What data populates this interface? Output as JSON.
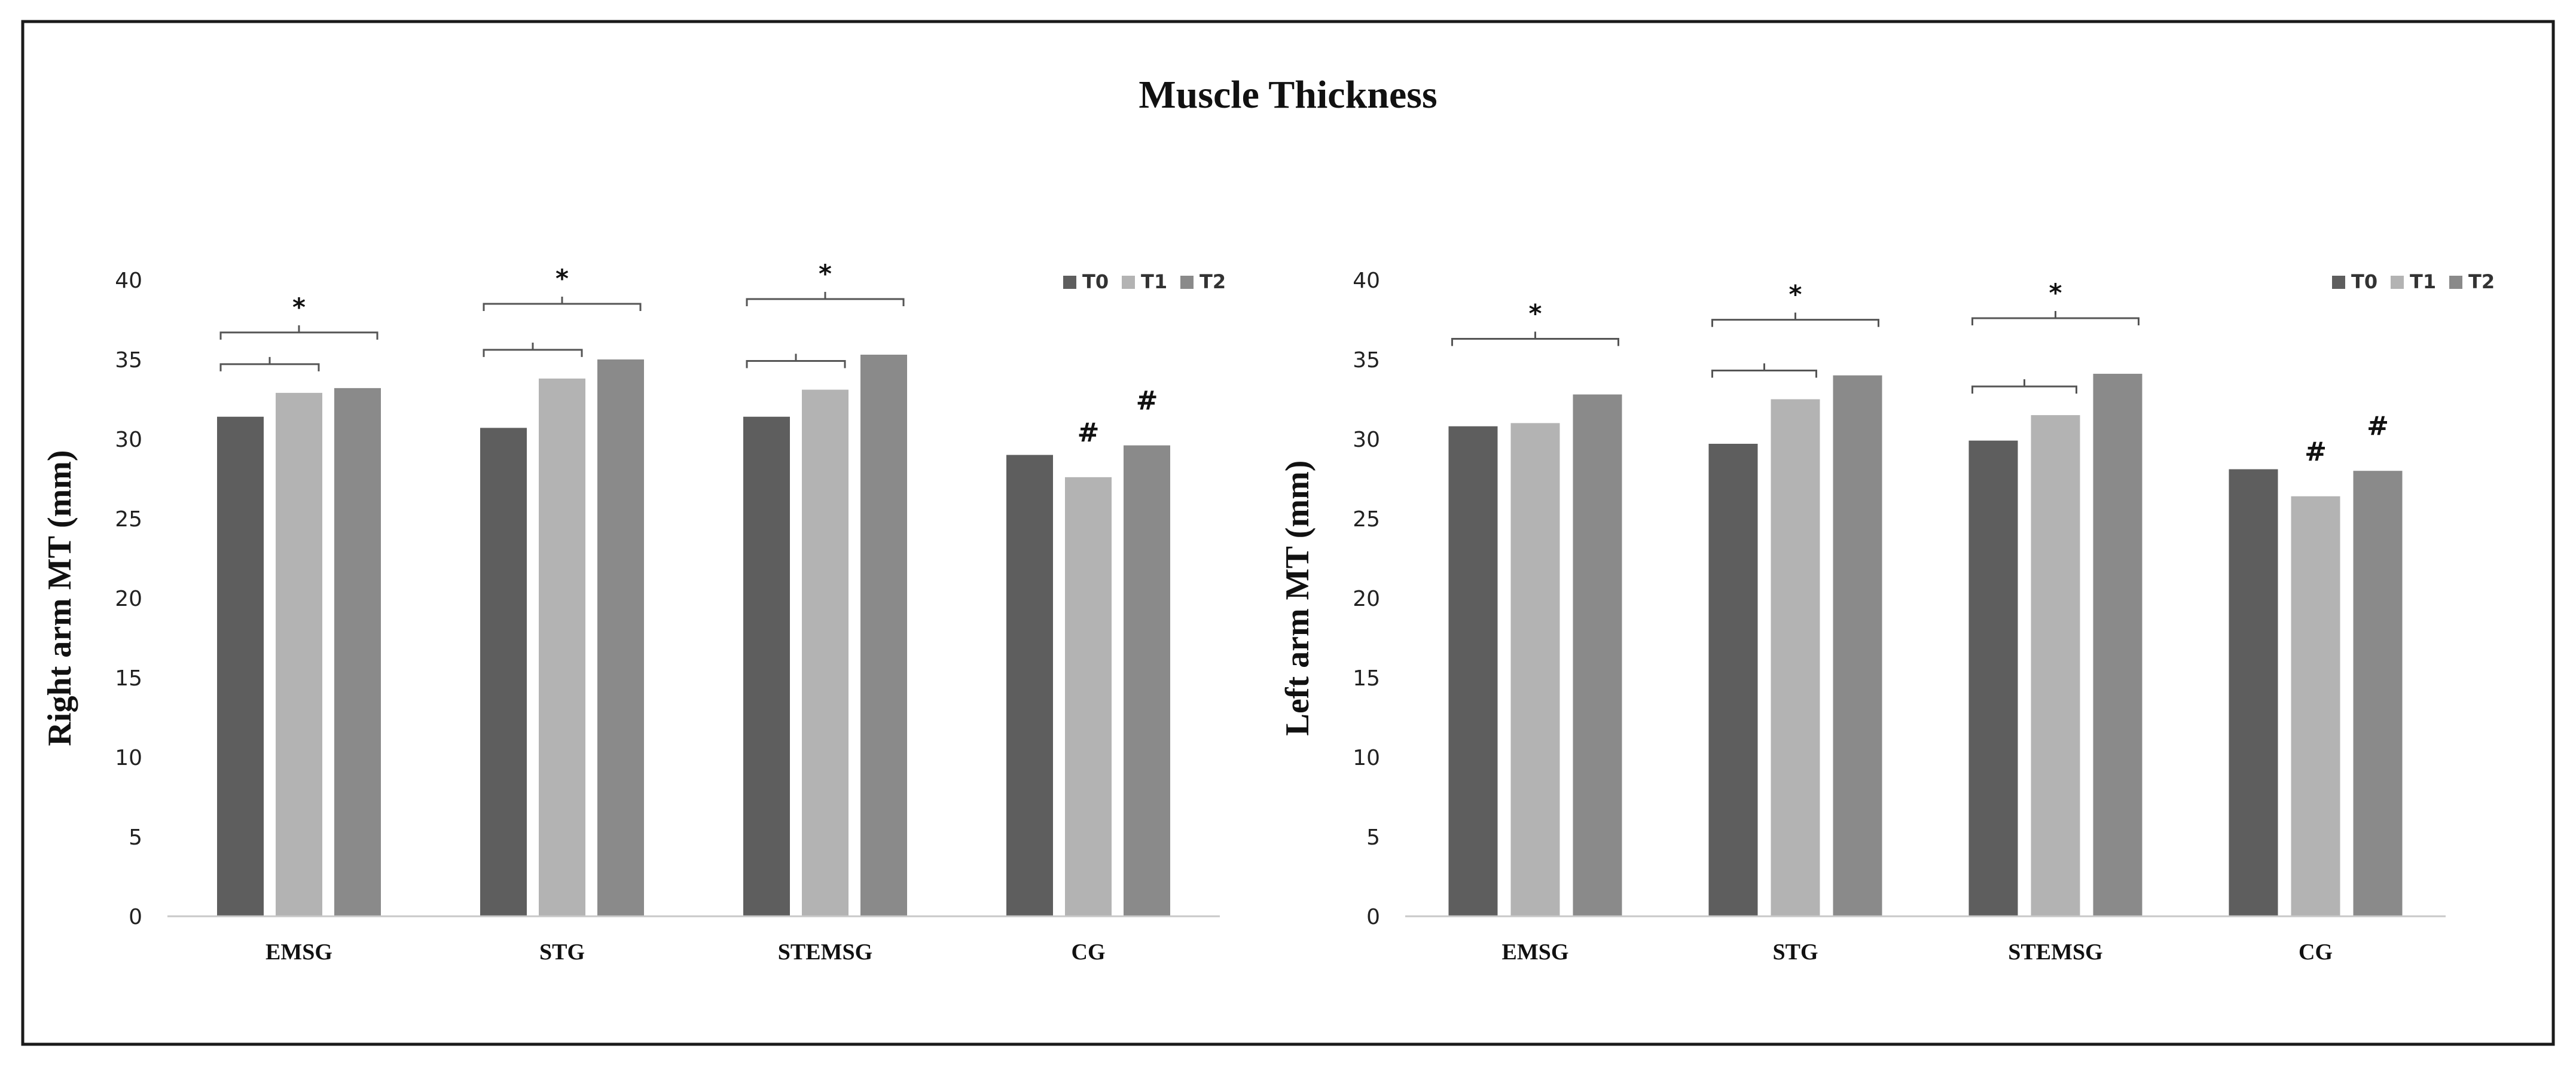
{
  "figure": {
    "title": "Muscle Thickness"
  },
  "chart_data": [
    {
      "type": "bar",
      "ylabel": "Right arm MT (mm)",
      "xlabel": "",
      "ylim": [
        0,
        40
      ],
      "yticks": [
        0,
        5,
        10,
        15,
        20,
        25,
        30,
        35,
        40
      ],
      "grid": false,
      "legend_position": "top-right",
      "categories": [
        "EMSG",
        "STG",
        "STEMSG",
        "CG"
      ],
      "series": [
        {
          "name": "T0",
          "color": "#5e5e5e",
          "values": [
            31.4,
            30.7,
            31.4,
            29.0
          ]
        },
        {
          "name": "T1",
          "color": "#b3b3b3",
          "values": [
            32.9,
            33.8,
            33.1,
            27.6
          ]
        },
        {
          "name": "T2",
          "color": "#8a8a8a",
          "values": [
            33.2,
            35.0,
            35.3,
            29.6
          ]
        }
      ],
      "annotations": [
        {
          "type": "bracket",
          "category": "EMSG",
          "from": "T0",
          "to": "T1",
          "level": 1
        },
        {
          "type": "bracket",
          "category": "EMSG",
          "from": "T0",
          "to": "T2",
          "level": 2,
          "label": "*"
        },
        {
          "type": "bracket",
          "category": "STG",
          "from": "T0",
          "to": "T1",
          "level": 1
        },
        {
          "type": "bracket",
          "category": "STG",
          "from": "T0",
          "to": "T2",
          "level": 2,
          "label": "*"
        },
        {
          "type": "bracket",
          "category": "STEMSG",
          "from": "T0",
          "to": "T1",
          "level": 1
        },
        {
          "type": "bracket",
          "category": "STEMSG",
          "from": "T0",
          "to": "T2",
          "level": 2,
          "label": "*"
        },
        {
          "type": "marker",
          "category": "CG",
          "series": "T1",
          "label": "#"
        },
        {
          "type": "marker",
          "category": "CG",
          "series": "T2",
          "label": "#"
        }
      ]
    },
    {
      "type": "bar",
      "ylabel": "Left arm MT (mm)",
      "xlabel": "",
      "ylim": [
        0,
        40
      ],
      "yticks": [
        0,
        5,
        10,
        15,
        20,
        25,
        30,
        35,
        40
      ],
      "grid": false,
      "legend_position": "top-right",
      "categories": [
        "EMSG",
        "STG",
        "STEMSG",
        "CG"
      ],
      "series": [
        {
          "name": "T0",
          "color": "#5e5e5e",
          "values": [
            30.8,
            29.7,
            29.9,
            28.1
          ]
        },
        {
          "name": "T1",
          "color": "#b3b3b3",
          "values": [
            31.0,
            32.5,
            31.5,
            26.4
          ]
        },
        {
          "name": "T2",
          "color": "#8a8a8a",
          "values": [
            32.8,
            34.0,
            34.1,
            28.0
          ]
        }
      ],
      "annotations": [
        {
          "type": "bracket",
          "category": "EMSG",
          "from": "T0",
          "to": "T2",
          "level": 2,
          "label": "*"
        },
        {
          "type": "bracket",
          "category": "STG",
          "from": "T0",
          "to": "T1",
          "level": 1
        },
        {
          "type": "bracket",
          "category": "STG",
          "from": "T0",
          "to": "T2",
          "level": 2,
          "label": "*"
        },
        {
          "type": "bracket",
          "category": "STEMSG",
          "from": "T0",
          "to": "T1",
          "level": 1
        },
        {
          "type": "bracket",
          "category": "STEMSG",
          "from": "T0",
          "to": "T2",
          "level": 2,
          "label": "*"
        },
        {
          "type": "marker",
          "category": "CG",
          "series": "T1",
          "label": "#"
        },
        {
          "type": "marker",
          "category": "CG",
          "series": "T2",
          "label": "#"
        }
      ]
    }
  ]
}
